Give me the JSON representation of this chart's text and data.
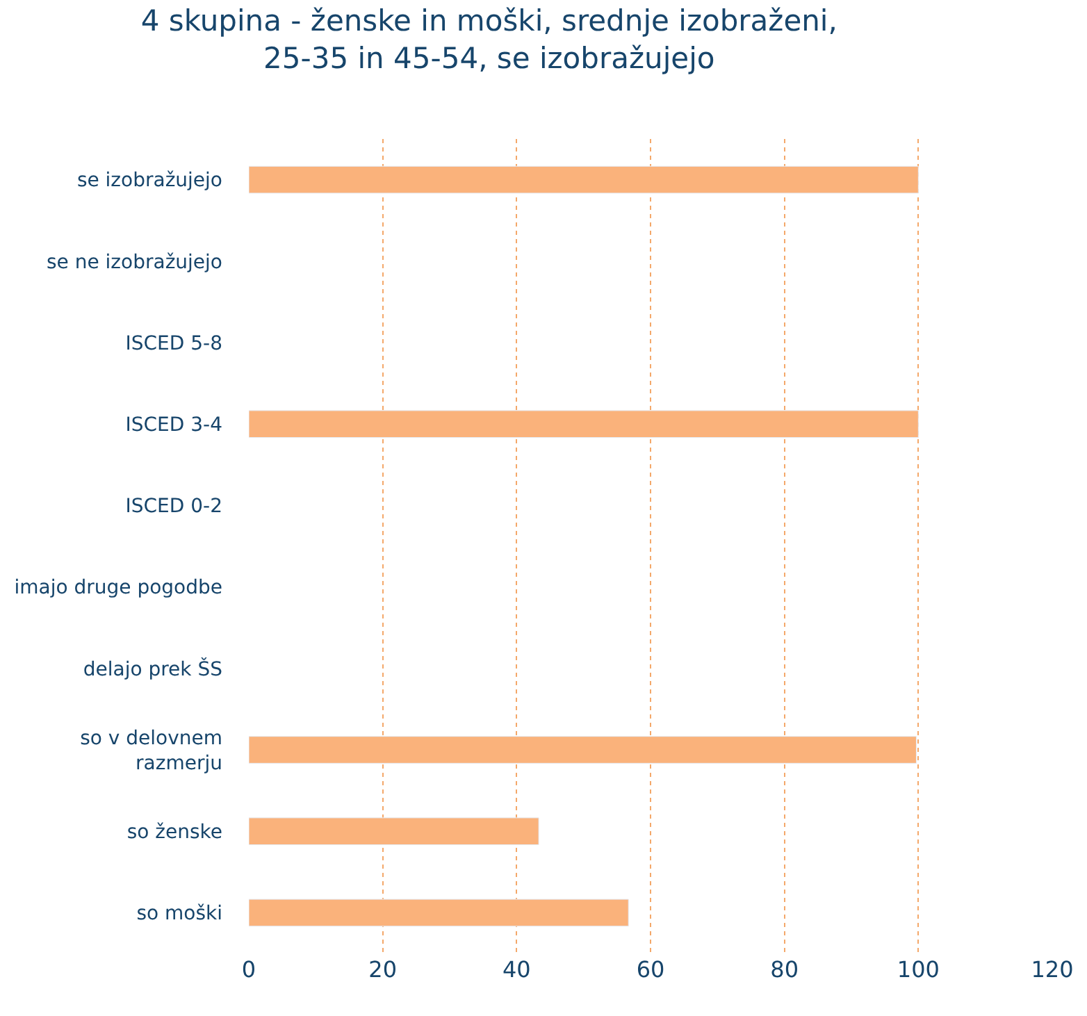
{
  "chart_data": {
    "type": "bar",
    "orientation": "horizontal",
    "title": "4 skupina - ženske in moški, srednje izobraženi,\n25-35 in 45-54, se izobražujejo",
    "categories": [
      "se izobražujejo",
      "se ne izobražujejo",
      "ISCED 5-8",
      "ISCED 3-4",
      "ISCED 0-2",
      "imajo druge pogodbe",
      "delajo prek ŠS",
      "so v delovnem razmerju",
      "so ženske",
      "so moški"
    ],
    "values": [
      100,
      null,
      null,
      100,
      null,
      null,
      null,
      99.7,
      43.3,
      56.7
    ],
    "color": "#fab27b",
    "xlim": [
      0,
      120
    ],
    "xticks": [
      0,
      20,
      40,
      60,
      80,
      100,
      120
    ],
    "grid": "x"
  }
}
